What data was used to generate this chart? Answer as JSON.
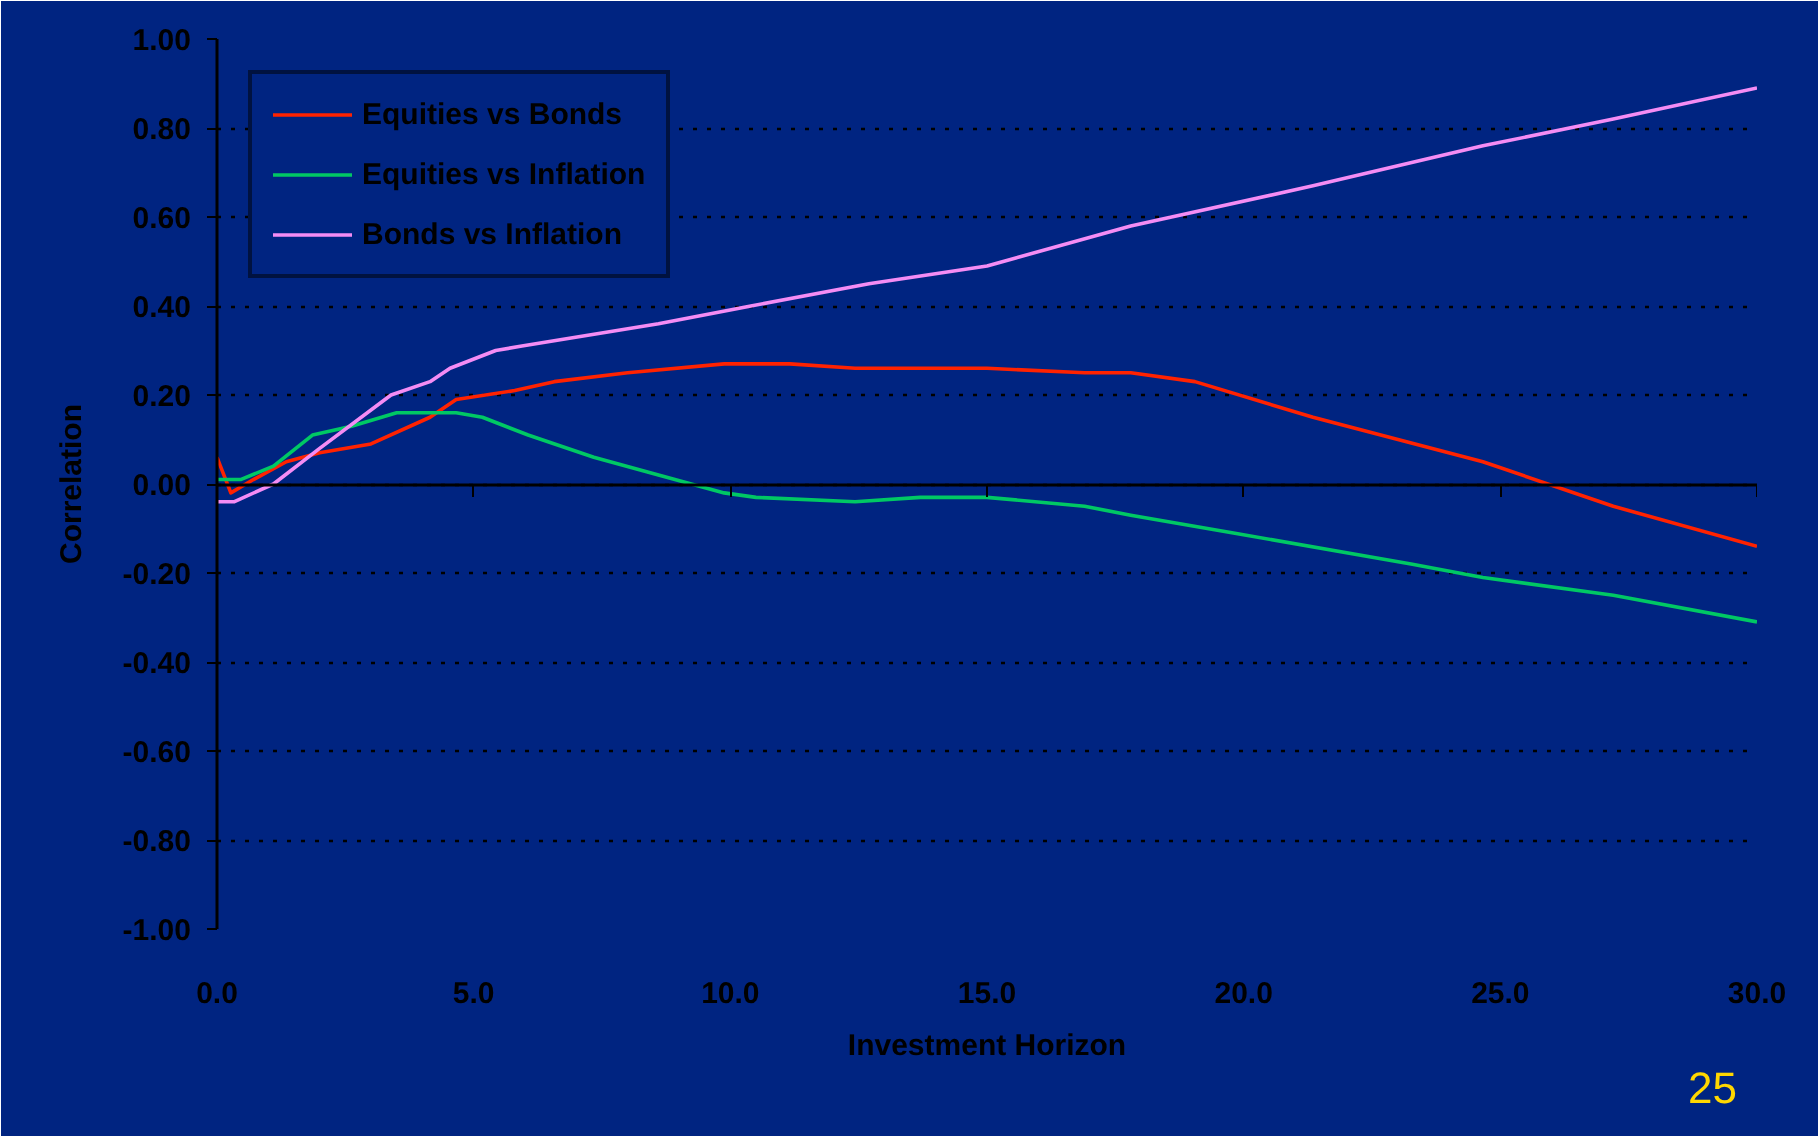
{
  "chart_data": {
    "type": "line",
    "xlabel": "Investment Horizon",
    "ylabel": "Correlation",
    "xlim": [
      0,
      30
    ],
    "xticks": [
      {
        "value": 0,
        "label": "0.0"
      },
      {
        "value": 5,
        "label": "5.0"
      },
      {
        "value": 10,
        "label": "10.0"
      },
      {
        "value": 15,
        "label": "15.0"
      },
      {
        "value": 20,
        "label": "20.0"
      },
      {
        "value": 25,
        "label": "25.0"
      },
      {
        "value": 30,
        "label": "30.0"
      }
    ],
    "ylim": [
      -1,
      1
    ],
    "yticks": [
      {
        "value": -1,
        "label": "-1.00"
      },
      {
        "value": -0.8,
        "label": "-0.80"
      },
      {
        "value": -0.6,
        "label": "-0.60"
      },
      {
        "value": -0.4,
        "label": "-0.40"
      },
      {
        "value": -0.2,
        "label": "-0.20"
      },
      {
        "value": 0,
        "label": "0.00"
      },
      {
        "value": 0.2,
        "label": "0.20"
      },
      {
        "value": 0.4,
        "label": "0.40"
      },
      {
        "value": 0.6,
        "label": "0.60"
      },
      {
        "value": 0.8,
        "label": "0.80"
      },
      {
        "value": 1,
        "label": "1.00"
      }
    ],
    "grid": "y",
    "legend": "top left",
    "annotations": [
      "25"
    ],
    "series": [
      {
        "name": "Equities vs Bonds",
        "color": "#ff2200",
        "x": [
          0,
          0.27,
          0.71,
          1.35,
          2.0,
          3.0,
          4.15,
          4.66,
          5.8,
          6.57,
          8.0,
          9.88,
          11.16,
          12.43,
          15.0,
          16.9,
          17.8,
          19.05,
          21.35,
          24.66,
          27.2,
          30
        ],
        "values": [
          0.06,
          -0.02,
          0.01,
          0.05,
          0.07,
          0.09,
          0.15,
          0.19,
          0.21,
          0.23,
          0.25,
          0.27,
          0.27,
          0.26,
          0.26,
          0.25,
          0.25,
          0.23,
          0.15,
          0.05,
          -0.05,
          -0.14
        ]
      },
      {
        "name": "Equities vs Inflation",
        "color": "#00c864",
        "x": [
          0,
          0.46,
          1.1,
          1.86,
          2.62,
          3.5,
          4.0,
          4.66,
          5.17,
          6.06,
          7.34,
          8.6,
          9.88,
          10.5,
          12.43,
          13.7,
          15.0,
          16.9,
          17.8,
          19.8,
          23.26,
          24.66,
          27.2,
          30
        ],
        "values": [
          0.01,
          0.01,
          0.04,
          0.11,
          0.13,
          0.16,
          0.16,
          0.16,
          0.15,
          0.11,
          0.06,
          0.02,
          -0.02,
          -0.03,
          -0.04,
          -0.03,
          -0.03,
          -0.05,
          -0.07,
          -0.11,
          -0.18,
          -0.21,
          -0.25,
          -0.31
        ]
      },
      {
        "name": "Bonds vs Inflation",
        "color": "#f48cf4",
        "x": [
          0,
          0.33,
          1.1,
          2.0,
          3.39,
          4.15,
          4.54,
          5.43,
          5.94,
          8.6,
          10.4,
          12.7,
          15.0,
          17.8,
          21.35,
          24.66,
          27.2,
          30
        ],
        "values": [
          -0.04,
          -0.04,
          0.0,
          0.08,
          0.2,
          0.23,
          0.26,
          0.3,
          0.31,
          0.36,
          0.4,
          0.45,
          0.49,
          0.58,
          0.67,
          0.76,
          0.82,
          0.89
        ]
      }
    ]
  }
}
